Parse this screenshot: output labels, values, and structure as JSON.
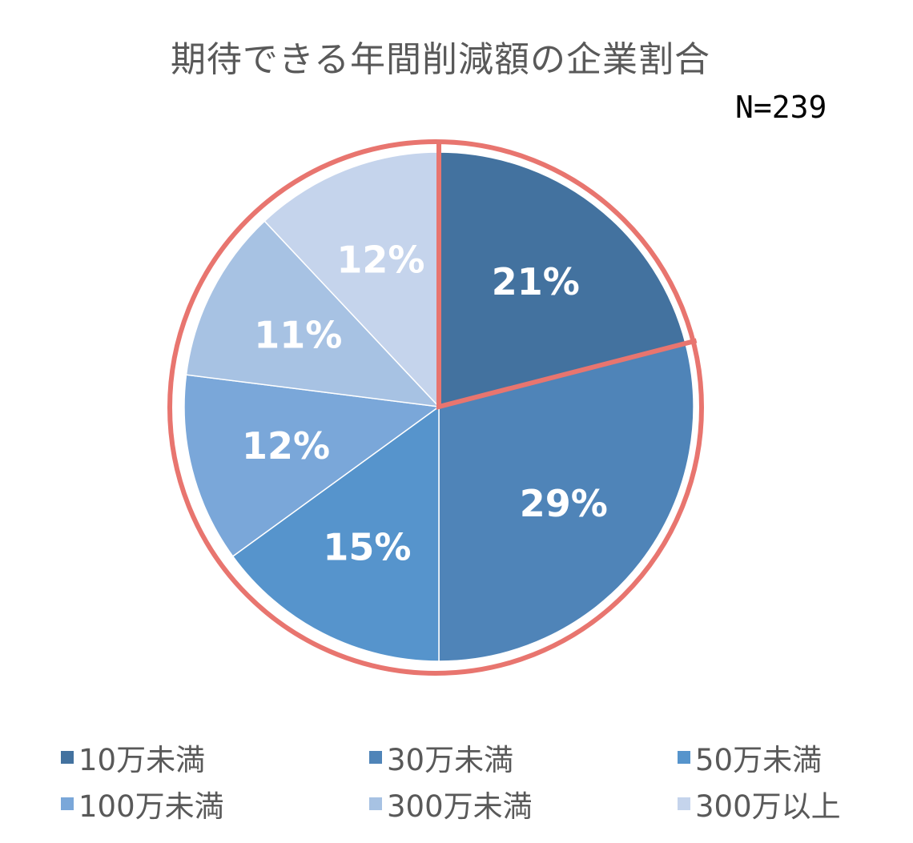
{
  "chart_data": {
    "type": "pie",
    "title": "期待できる年間削減額の企業割合",
    "note": "N=239",
    "categories": [
      "10万未満",
      "30万未満",
      "50万未満",
      "100万未満",
      "300万未満",
      "300万以上"
    ],
    "values": [
      21,
      29,
      15,
      12,
      11,
      12
    ],
    "labels": [
      "21%",
      "29%",
      "15%",
      "12%",
      "11%",
      "12%"
    ],
    "colors": [
      "#43729F",
      "#4F84B8",
      "#5694CC",
      "#7AA7D9",
      "#A7C2E3",
      "#C5D4EC"
    ],
    "highlight": {
      "slices": [
        "10万未満",
        "30万未満"
      ],
      "color": "#E8756F"
    },
    "legend_position": "bottom"
  }
}
